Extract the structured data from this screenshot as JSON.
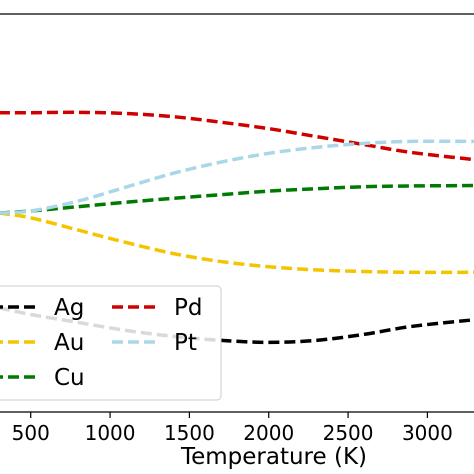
{
  "chart_data": {
    "type": "line",
    "xlabel": "Temperature (K)",
    "ylabel": "",
    "title": "",
    "xlim": [
      300,
      3300
    ],
    "x_ticks": [
      "500",
      "1000",
      "1500",
      "2000",
      "2500",
      "3000"
    ],
    "x_tick_values": [
      500,
      1000,
      1500,
      2000,
      2500,
      3000
    ],
    "ylim": [
      0,
      1
    ],
    "grid": false,
    "legend": {
      "placement": "lower-left",
      "columns": 2,
      "entries": [
        "Ag",
        "Au",
        "Cu",
        "Pd",
        "Pt"
      ]
    },
    "series": [
      {
        "name": "Ag",
        "color": "#000000",
        "style": "dashed",
        "x": [
          300,
          500,
          800,
          1100,
          1400,
          1700,
          2000,
          2300,
          2600,
          2900,
          3300
        ],
        "y": [
          0.262,
          0.245,
          0.225,
          0.205,
          0.19,
          0.18,
          0.175,
          0.18,
          0.195,
          0.215,
          0.232
        ]
      },
      {
        "name": "Au",
        "color": "#f5c400",
        "style": "dashed",
        "x": [
          300,
          500,
          800,
          1100,
          1400,
          1700,
          2000,
          2300,
          2600,
          2900,
          3300
        ],
        "y": [
          0.5,
          0.488,
          0.457,
          0.426,
          0.398,
          0.378,
          0.365,
          0.357,
          0.353,
          0.351,
          0.351
        ]
      },
      {
        "name": "Cu",
        "color": "#007a00",
        "style": "dashed",
        "x": [
          300,
          500,
          800,
          1100,
          1400,
          1700,
          2000,
          2300,
          2600,
          2900,
          3300
        ],
        "y": [
          0.5,
          0.505,
          0.516,
          0.527,
          0.537,
          0.546,
          0.555,
          0.561,
          0.566,
          0.568,
          0.569
        ]
      },
      {
        "name": "Pd",
        "color": "#d00000",
        "style": "dashed",
        "x": [
          300,
          500,
          800,
          1100,
          1400,
          1700,
          2000,
          2300,
          2600,
          2900,
          3300
        ],
        "y": [
          0.752,
          0.752,
          0.753,
          0.75,
          0.742,
          0.728,
          0.712,
          0.692,
          0.672,
          0.652,
          0.634
        ]
      },
      {
        "name": "Pt",
        "color": "#a8d8e8",
        "style": "dashed",
        "x": [
          300,
          500,
          800,
          1100,
          1400,
          1700,
          2000,
          2300,
          2600,
          2900,
          3300
        ],
        "y": [
          0.5,
          0.505,
          0.53,
          0.565,
          0.6,
          0.628,
          0.65,
          0.665,
          0.675,
          0.68,
          0.68
        ]
      }
    ]
  }
}
